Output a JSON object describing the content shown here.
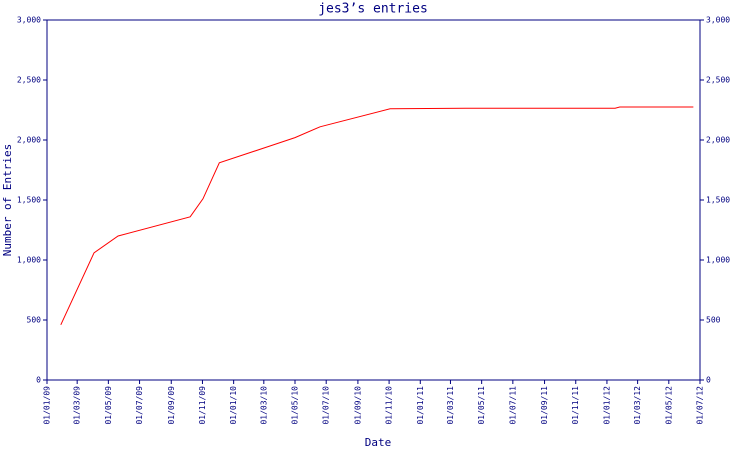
{
  "chart_data": {
    "type": "line",
    "title": "jes3’s entries",
    "x_label": "Date",
    "y_label": "Number of Entries",
    "x": [
      "2009-01-28",
      "2009-04-03",
      "2009-05-20",
      "2009-10-08",
      "2009-11-02",
      "2009-12-04",
      "2010-03-13",
      "2010-05-01",
      "2010-06-19",
      "2010-11-03",
      "2011-03-30",
      "2012-01-17",
      "2012-01-26",
      "2012-06-18"
    ],
    "series": [
      {
        "name": "Entries",
        "color": "#ff0000",
        "values": [
          460,
          1060,
          1200,
          1360,
          1510,
          1810,
          1950,
          2020,
          2110,
          2260,
          2265,
          2265,
          2275,
          2275
        ]
      }
    ],
    "xlim": [
      "2009-01-01",
      "2012-07-01"
    ],
    "xticks": [
      {
        "value": "2009-01-01",
        "label": "01/01/09"
      },
      {
        "value": "2009-03-01",
        "label": "01/03/09"
      },
      {
        "value": "2009-05-01",
        "label": "01/05/09"
      },
      {
        "value": "2009-07-01",
        "label": "01/07/09"
      },
      {
        "value": "2009-09-01",
        "label": "01/09/09"
      },
      {
        "value": "2009-11-01",
        "label": "01/11/09"
      },
      {
        "value": "2010-01-01",
        "label": "01/01/10"
      },
      {
        "value": "2010-03-01",
        "label": "01/03/10"
      },
      {
        "value": "2010-05-01",
        "label": "01/05/10"
      },
      {
        "value": "2010-07-01",
        "label": "01/07/10"
      },
      {
        "value": "2010-09-01",
        "label": "01/09/10"
      },
      {
        "value": "2010-11-01",
        "label": "01/11/10"
      },
      {
        "value": "2011-01-01",
        "label": "01/01/11"
      },
      {
        "value": "2011-03-01",
        "label": "01/03/11"
      },
      {
        "value": "2011-05-01",
        "label": "01/05/11"
      },
      {
        "value": "2011-07-01",
        "label": "01/07/11"
      },
      {
        "value": "2011-09-01",
        "label": "01/09/11"
      },
      {
        "value": "2011-11-01",
        "label": "01/11/11"
      },
      {
        "value": "2012-01-01",
        "label": "01/01/12"
      },
      {
        "value": "2012-03-01",
        "label": "01/03/12"
      },
      {
        "value": "2012-05-01",
        "label": "01/05/12"
      },
      {
        "value": "2012-07-01",
        "label": "01/07/12"
      }
    ],
    "ylim": [
      0,
      3000
    ],
    "yticks": [
      0,
      500,
      {
        "value": 1000,
        "label": "1,000"
      },
      {
        "value": 1500,
        "label": "1,500"
      },
      {
        "value": 2000,
        "label": "2,000"
      },
      {
        "value": 2500,
        "label": "2,500"
      },
      {
        "value": 3000,
        "label": "3,000"
      }
    ],
    "axis_color": "#000080"
  }
}
